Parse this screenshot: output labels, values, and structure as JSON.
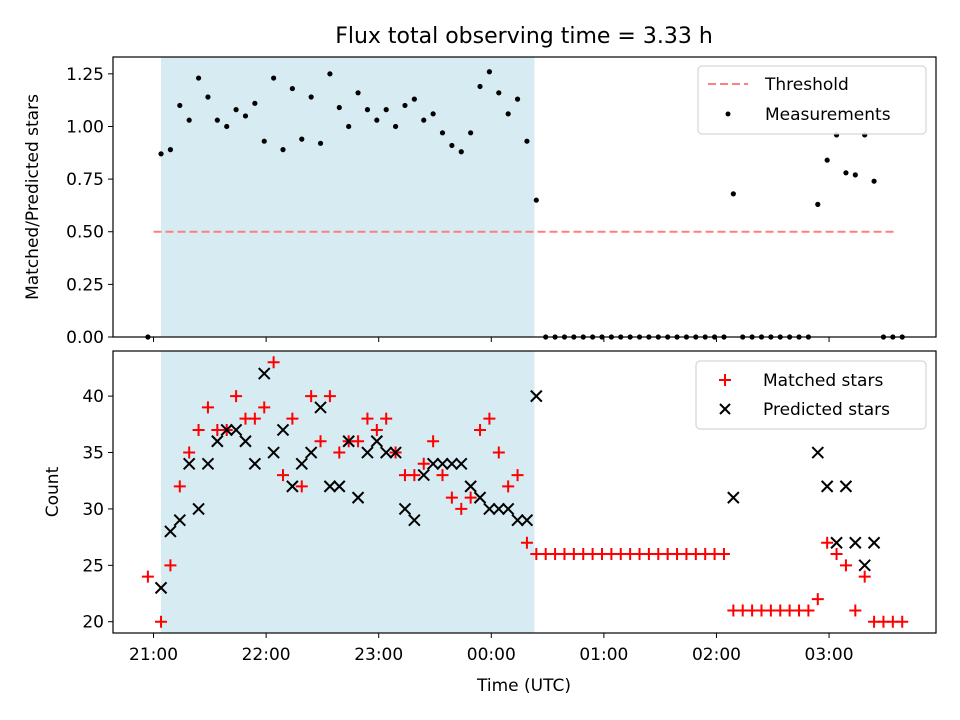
{
  "chart_data": [
    {
      "type": "scatter",
      "title": "Flux total observing time = 3.33 h",
      "xlabel": "",
      "ylabel": "Matched/Predicted stars",
      "ylim": [
        0,
        1.33
      ],
      "x_axis": "time (UTC, hours past 21:00)",
      "xlim": [
        -0.36,
        6.95
      ],
      "yticks": [
        0.0,
        0.25,
        0.5,
        0.75,
        1.0,
        1.25
      ],
      "ytick_labels": [
        "0.00",
        "0.25",
        "0.50",
        "0.75",
        "1.00",
        "1.25"
      ],
      "observing_window": [
        "21:04",
        "00:23"
      ],
      "threshold": {
        "name": "Threshold",
        "value": 0.5,
        "x_range": [
          "21:00",
          "03:36"
        ],
        "color": "#ff7f7f"
      },
      "series": [
        {
          "name": "Measurements",
          "color": "#000000",
          "points": [
            [
              "20:57",
              0.0
            ],
            [
              "21:04",
              0.87
            ],
            [
              "21:09",
              0.89
            ],
            [
              "21:14",
              1.1
            ],
            [
              "21:19",
              1.03
            ],
            [
              "21:24",
              1.23
            ],
            [
              "21:29",
              1.14
            ],
            [
              "21:34",
              1.03
            ],
            [
              "21:39",
              1.0
            ],
            [
              "21:44",
              1.08
            ],
            [
              "21:49",
              1.05
            ],
            [
              "21:54",
              1.11
            ],
            [
              "21:59",
              0.93
            ],
            [
              "22:04",
              1.23
            ],
            [
              "22:09",
              0.89
            ],
            [
              "22:14",
              1.18
            ],
            [
              "22:19",
              0.94
            ],
            [
              "22:24",
              1.14
            ],
            [
              "22:29",
              0.92
            ],
            [
              "22:34",
              1.25
            ],
            [
              "22:39",
              1.09
            ],
            [
              "22:44",
              1.0
            ],
            [
              "22:49",
              1.16
            ],
            [
              "22:54",
              1.08
            ],
            [
              "22:59",
              1.03
            ],
            [
              "23:04",
              1.08
            ],
            [
              "23:09",
              1.0
            ],
            [
              "23:14",
              1.1
            ],
            [
              "23:19",
              1.13
            ],
            [
              "23:24",
              1.03
            ],
            [
              "23:29",
              1.06
            ],
            [
              "23:34",
              0.97
            ],
            [
              "23:39",
              0.91
            ],
            [
              "23:44",
              0.88
            ],
            [
              "23:49",
              0.97
            ],
            [
              "23:54",
              1.19
            ],
            [
              "23:59",
              1.26
            ],
            [
              "00:04",
              1.16
            ],
            [
              "00:09",
              1.06
            ],
            [
              "00:14",
              1.13
            ],
            [
              "00:19",
              0.93
            ],
            [
              "00:24",
              0.65
            ],
            [
              "00:29",
              0.0
            ],
            [
              "00:34",
              0.0
            ],
            [
              "00:39",
              0.0
            ],
            [
              "00:44",
              0.0
            ],
            [
              "00:49",
              0.0
            ],
            [
              "00:54",
              0.0
            ],
            [
              "00:59",
              0.0
            ],
            [
              "01:04",
              0.0
            ],
            [
              "01:09",
              0.0
            ],
            [
              "01:14",
              0.0
            ],
            [
              "01:19",
              0.0
            ],
            [
              "01:24",
              0.0
            ],
            [
              "01:29",
              0.0
            ],
            [
              "01:34",
              0.0
            ],
            [
              "01:39",
              0.0
            ],
            [
              "01:44",
              0.0
            ],
            [
              "01:49",
              0.0
            ],
            [
              "01:54",
              0.0
            ],
            [
              "01:59",
              0.0
            ],
            [
              "02:04",
              0.0
            ],
            [
              "02:09",
              0.68
            ],
            [
              "02:14",
              0.0
            ],
            [
              "02:19",
              0.0
            ],
            [
              "02:24",
              0.0
            ],
            [
              "02:29",
              0.0
            ],
            [
              "02:34",
              0.0
            ],
            [
              "02:39",
              0.0
            ],
            [
              "02:44",
              0.0
            ],
            [
              "02:49",
              0.0
            ],
            [
              "02:54",
              0.63
            ],
            [
              "02:59",
              0.84
            ],
            [
              "03:04",
              0.96
            ],
            [
              "03:09",
              0.78
            ],
            [
              "03:14",
              0.77
            ],
            [
              "03:19",
              0.96
            ],
            [
              "03:24",
              0.74
            ],
            [
              "03:29",
              0.0
            ],
            [
              "03:34",
              0.0
            ],
            [
              "03:39",
              0.0
            ]
          ]
        }
      ],
      "legend": {
        "placement": "top-right",
        "entries": [
          "Threshold",
          "Measurements"
        ]
      }
    },
    {
      "type": "scatter",
      "title": "",
      "xlabel": "Time (UTC)",
      "ylabel": "Count",
      "ylim": [
        19,
        44
      ],
      "xlim": [
        -0.36,
        6.95
      ],
      "yticks": [
        20,
        25,
        30,
        35,
        40
      ],
      "ytick_labels": [
        "20",
        "25",
        "30",
        "35",
        "40"
      ],
      "xticks": [
        "21:00",
        "22:00",
        "23:00",
        "00:00",
        "01:00",
        "02:00",
        "03:00"
      ],
      "observing_window": [
        "21:04",
        "00:23"
      ],
      "series": [
        {
          "name": "Matched stars",
          "color": "#ff0000",
          "marker": "+",
          "points": [
            [
              "20:57",
              24
            ],
            [
              "21:04",
              20
            ],
            [
              "21:09",
              25
            ],
            [
              "21:14",
              32
            ],
            [
              "21:19",
              35
            ],
            [
              "21:24",
              37
            ],
            [
              "21:29",
              39
            ],
            [
              "21:34",
              37
            ],
            [
              "21:39",
              37
            ],
            [
              "21:44",
              40
            ],
            [
              "21:49",
              38
            ],
            [
              "21:54",
              38
            ],
            [
              "21:59",
              39
            ],
            [
              "22:04",
              43
            ],
            [
              "22:09",
              33
            ],
            [
              "22:14",
              38
            ],
            [
              "22:19",
              32
            ],
            [
              "22:24",
              40
            ],
            [
              "22:29",
              36
            ],
            [
              "22:34",
              40
            ],
            [
              "22:39",
              35
            ],
            [
              "22:44",
              36
            ],
            [
              "22:49",
              36
            ],
            [
              "22:54",
              38
            ],
            [
              "22:59",
              37
            ],
            [
              "23:04",
              38
            ],
            [
              "23:09",
              35
            ],
            [
              "23:14",
              33
            ],
            [
              "23:19",
              33
            ],
            [
              "23:24",
              34
            ],
            [
              "23:29",
              36
            ],
            [
              "23:34",
              33
            ],
            [
              "23:39",
              31
            ],
            [
              "23:44",
              30
            ],
            [
              "23:49",
              31
            ],
            [
              "23:54",
              37
            ],
            [
              "23:59",
              38
            ],
            [
              "00:04",
              35
            ],
            [
              "00:09",
              32
            ],
            [
              "00:14",
              33
            ],
            [
              "00:19",
              27
            ],
            [
              "00:24",
              26
            ],
            [
              "00:29",
              26
            ],
            [
              "00:34",
              26
            ],
            [
              "00:39",
              26
            ],
            [
              "00:44",
              26
            ],
            [
              "00:49",
              26
            ],
            [
              "00:54",
              26
            ],
            [
              "00:59",
              26
            ],
            [
              "01:04",
              26
            ],
            [
              "01:09",
              26
            ],
            [
              "01:14",
              26
            ],
            [
              "01:19",
              26
            ],
            [
              "01:24",
              26
            ],
            [
              "01:29",
              26
            ],
            [
              "01:34",
              26
            ],
            [
              "01:39",
              26
            ],
            [
              "01:44",
              26
            ],
            [
              "01:49",
              26
            ],
            [
              "01:54",
              26
            ],
            [
              "01:59",
              26
            ],
            [
              "02:04",
              26
            ],
            [
              "02:09",
              21
            ],
            [
              "02:14",
              21
            ],
            [
              "02:19",
              21
            ],
            [
              "02:24",
              21
            ],
            [
              "02:29",
              21
            ],
            [
              "02:34",
              21
            ],
            [
              "02:39",
              21
            ],
            [
              "02:44",
              21
            ],
            [
              "02:49",
              21
            ],
            [
              "02:54",
              22
            ],
            [
              "02:59",
              27
            ],
            [
              "03:04",
              26
            ],
            [
              "03:09",
              25
            ],
            [
              "03:14",
              21
            ],
            [
              "03:19",
              24
            ],
            [
              "03:24",
              20
            ],
            [
              "03:29",
              20
            ],
            [
              "03:34",
              20
            ],
            [
              "03:39",
              20
            ]
          ]
        },
        {
          "name": "Predicted stars",
          "color": "#000000",
          "marker": "x",
          "points": [
            [
              "21:04",
              23
            ],
            [
              "21:09",
              28
            ],
            [
              "21:14",
              29
            ],
            [
              "21:19",
              34
            ],
            [
              "21:24",
              30
            ],
            [
              "21:29",
              34
            ],
            [
              "21:34",
              36
            ],
            [
              "21:39",
              37
            ],
            [
              "21:44",
              37
            ],
            [
              "21:49",
              36
            ],
            [
              "21:54",
              34
            ],
            [
              "21:59",
              42
            ],
            [
              "22:04",
              35
            ],
            [
              "22:09",
              37
            ],
            [
              "22:14",
              32
            ],
            [
              "22:19",
              34
            ],
            [
              "22:24",
              35
            ],
            [
              "22:29",
              39
            ],
            [
              "22:34",
              32
            ],
            [
              "22:39",
              32
            ],
            [
              "22:44",
              36
            ],
            [
              "22:49",
              31
            ],
            [
              "22:54",
              35
            ],
            [
              "22:59",
              36
            ],
            [
              "23:04",
              35
            ],
            [
              "23:09",
              35
            ],
            [
              "23:14",
              30
            ],
            [
              "23:19",
              29
            ],
            [
              "23:24",
              33
            ],
            [
              "23:29",
              34
            ],
            [
              "23:34",
              34
            ],
            [
              "23:39",
              34
            ],
            [
              "23:44",
              34
            ],
            [
              "23:49",
              32
            ],
            [
              "23:54",
              31
            ],
            [
              "23:59",
              30
            ],
            [
              "00:04",
              30
            ],
            [
              "00:09",
              30
            ],
            [
              "00:14",
              29
            ],
            [
              "00:19",
              29
            ],
            [
              "00:24",
              40
            ],
            [
              "02:09",
              31
            ],
            [
              "02:54",
              35
            ],
            [
              "02:59",
              32
            ],
            [
              "03:04",
              27
            ],
            [
              "03:09",
              32
            ],
            [
              "03:14",
              27
            ],
            [
              "03:19",
              25
            ],
            [
              "03:24",
              27
            ]
          ]
        }
      ],
      "legend": {
        "placement": "top-right",
        "entries": [
          "Matched stars",
          "Predicted stars"
        ]
      }
    }
  ],
  "colors": {
    "observing_window_fill": "#add8e6",
    "threshold": "#ff7f7f",
    "matched": "#ff0000",
    "predicted": "#000000",
    "measurements": "#000000"
  }
}
